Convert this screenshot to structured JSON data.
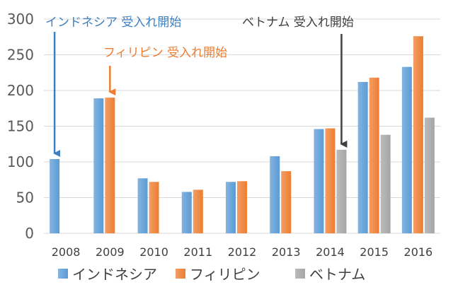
{
  "chart_data": {
    "type": "bar",
    "title": "",
    "xlabel": "",
    "ylabel": "",
    "ylim": [
      0,
      300
    ],
    "yticks": [
      0,
      50,
      100,
      150,
      200,
      250,
      300
    ],
    "grid": true,
    "legend_position": "bottom",
    "categories": [
      "2008",
      "2009",
      "2010",
      "2011",
      "2012",
      "2013",
      "2014",
      "2015",
      "2016"
    ],
    "series": [
      {
        "name": "インドネシア",
        "color": "#5B9BD5",
        "values": [
          104,
          189,
          77,
          58,
          72,
          108,
          146,
          212,
          233
        ]
      },
      {
        "name": "フィリピン",
        "color": "#ED7D31",
        "values": [
          null,
          190,
          72,
          61,
          73,
          87,
          147,
          218,
          276
        ]
      },
      {
        "name": "ベトナム",
        "color": "#A5A5A5",
        "values": [
          null,
          null,
          null,
          null,
          null,
          null,
          117,
          138,
          162
        ]
      }
    ],
    "annotations": [
      {
        "text": "インドネシア 受入れ開始",
        "color": "#3C7FC2",
        "series": 0,
        "category": "2008"
      },
      {
        "text": "フィリピン 受入れ開始",
        "color": "#ED7D31",
        "series": 1,
        "category": "2009"
      },
      {
        "text": "ベトナム 受入れ開始",
        "color": "#404040",
        "series": 2,
        "category": "2014"
      }
    ]
  }
}
